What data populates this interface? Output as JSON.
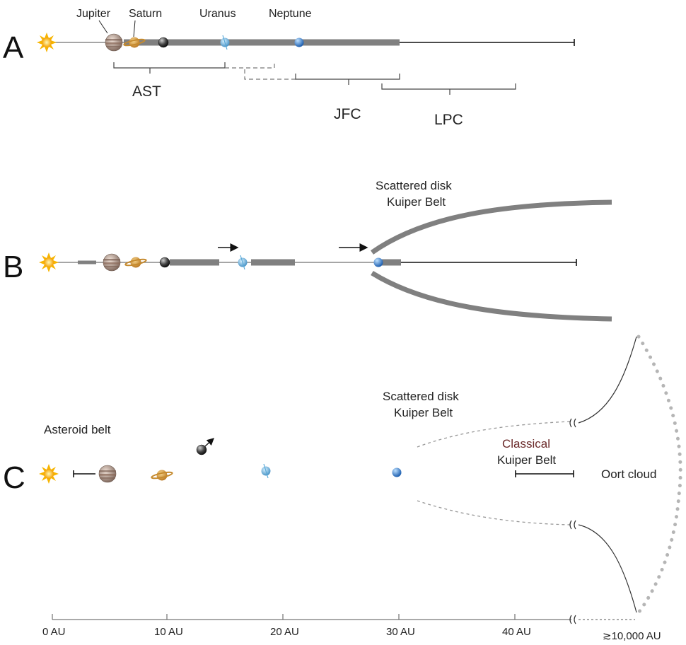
{
  "panels": [
    "A",
    "B",
    "C"
  ],
  "planets": [
    "Jupiter",
    "Saturn",
    "Uranus",
    "Neptune"
  ],
  "groups": [
    "AST",
    "JFC",
    "LPC"
  ],
  "regions": {
    "scattered_disk": "Scattered disk",
    "kuiper_belt": "Kuiper Belt",
    "asteroid_belt": "Asteroid belt",
    "classical_line1": "Classical",
    "classical_line2": "Kuiper Belt",
    "oort_cloud": "Oort cloud"
  },
  "axis_ticks": [
    "0 AU",
    "10 AU",
    "20 AU",
    "30 AU",
    "40 AU",
    "≳10,000 AU"
  ],
  "colors": {
    "sun": "#f7b500",
    "jupiter": "#a58a7a",
    "saturn": "#d99a3c",
    "dark_planet": "#2b2b2b",
    "uranus": "#5aa9d8",
    "neptune": "#2f7fd0",
    "belt": "#808080",
    "dashed": "#999999",
    "oort_dots": "#b5b5b5"
  }
}
